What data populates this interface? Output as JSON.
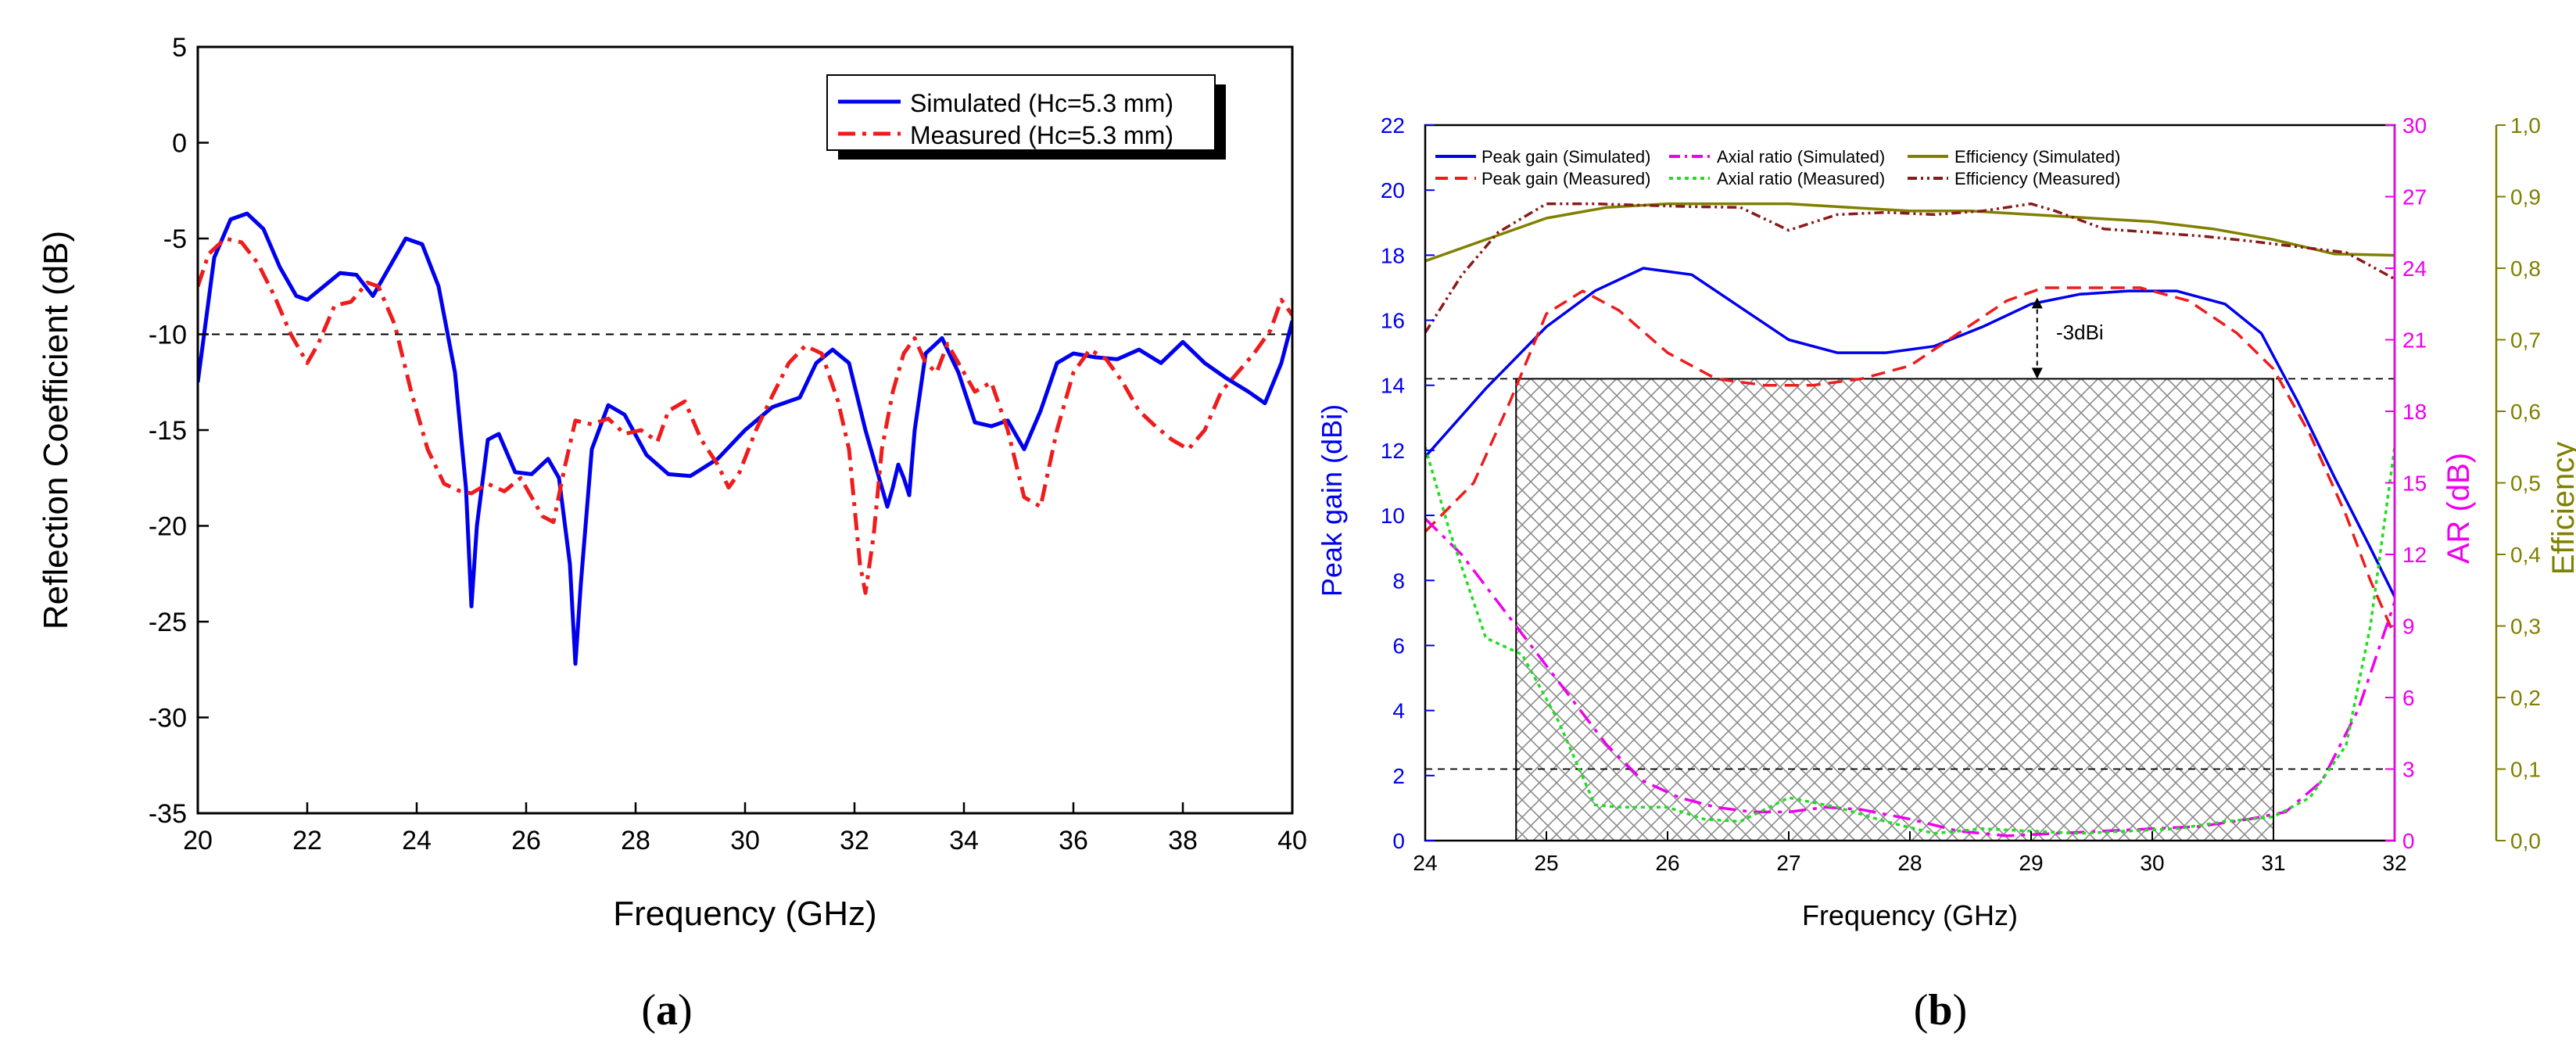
{
  "chart_data": [
    {
      "type": "line",
      "panel_label": "a",
      "title": "",
      "xlabel": "Frequency (GHz)",
      "ylabel": "Reflection Coefficient (dB)",
      "xlim": [
        20,
        40
      ],
      "ylim": [
        -35,
        5
      ],
      "xticks": [
        20,
        22,
        24,
        26,
        28,
        30,
        32,
        34,
        36,
        38,
        40
      ],
      "xtick_labels": [
        "20",
        "22",
        "24",
        "26",
        "28",
        "30",
        "32",
        "34",
        "36",
        "38",
        "40"
      ],
      "yticks": [
        -35,
        -30,
        -25,
        -20,
        -15,
        -10,
        -5,
        0,
        5
      ],
      "ytick_labels": [
        "-35",
        "-30",
        "-25",
        "-20",
        "-15",
        "-10",
        "-5",
        "0",
        "5"
      ],
      "reference_line": -10,
      "legend_position": "top-right",
      "series": [
        {
          "name": "Simulated (Hc=5.3 mm)",
          "color": "#0000ee",
          "style": "solid",
          "x": [
            20,
            20.3,
            20.6,
            20.9,
            21.2,
            21.5,
            21.8,
            22,
            22.3,
            22.6,
            22.9,
            23.2,
            23.5,
            23.8,
            24.1,
            24.4,
            24.7,
            24.9,
            25.0,
            25.1,
            25.3,
            25.5,
            25.8,
            26.1,
            26.4,
            26.6,
            26.8,
            26.9,
            27.0,
            27.2,
            27.5,
            27.8,
            28.2,
            28.6,
            29.0,
            29.5,
            30.0,
            30.5,
            31.0,
            31.3,
            31.6,
            31.9,
            32.2,
            32.4,
            32.6,
            32.7,
            32.8,
            32.9,
            33.0,
            33.1,
            33.3,
            33.6,
            33.9,
            34.2,
            34.5,
            34.8,
            35.1,
            35.4,
            35.7,
            36.0,
            36.4,
            36.8,
            37.2,
            37.6,
            38.0,
            38.4,
            38.8,
            39.2,
            39.5,
            39.8,
            40.0
          ],
          "y": [
            -12.5,
            -6.0,
            -4.0,
            -3.7,
            -4.5,
            -6.5,
            -8.0,
            -8.2,
            -7.5,
            -6.8,
            -6.9,
            -8.0,
            -6.5,
            -5.0,
            -5.3,
            -7.5,
            -12.0,
            -18.0,
            -24.2,
            -20.0,
            -15.5,
            -15.2,
            -17.2,
            -17.3,
            -16.5,
            -17.5,
            -22.0,
            -27.2,
            -23.0,
            -16.0,
            -13.7,
            -14.2,
            -16.3,
            -17.3,
            -17.4,
            -16.5,
            -15.0,
            -13.8,
            -13.3,
            -11.5,
            -10.8,
            -11.5,
            -15.0,
            -17.0,
            -19.0,
            -18.0,
            -16.8,
            -17.5,
            -18.4,
            -15.0,
            -11.0,
            -10.2,
            -12.0,
            -14.6,
            -14.8,
            -14.5,
            -16.0,
            -14.0,
            -11.5,
            -11.0,
            -11.2,
            -11.3,
            -10.8,
            -11.5,
            -10.4,
            -11.5,
            -12.3,
            -13.0,
            -13.6,
            -11.5,
            -9.3
          ]
        },
        {
          "name": "Measured (Hc=5.3 mm)",
          "color": "#ee1c1c",
          "style": "dashdot",
          "x": [
            20,
            20.2,
            20.5,
            20.8,
            21.1,
            21.4,
            21.7,
            22.0,
            22.2,
            22.5,
            22.8,
            23.1,
            23.3,
            23.6,
            23.9,
            24.2,
            24.5,
            24.8,
            25.0,
            25.3,
            25.6,
            25.9,
            26.1,
            26.3,
            26.5,
            26.7,
            26.9,
            27.2,
            27.5,
            27.8,
            28.1,
            28.4,
            28.6,
            28.9,
            29.2,
            29.5,
            29.7,
            29.9,
            30.2,
            30.5,
            30.8,
            31.1,
            31.4,
            31.7,
            31.9,
            32.0,
            32.1,
            32.2,
            32.35,
            32.5,
            32.7,
            32.9,
            33.1,
            33.3,
            33.5,
            33.7,
            33.9,
            34.2,
            34.5,
            34.8,
            35.1,
            35.4,
            35.7,
            36.0,
            36.3,
            36.6,
            36.9,
            37.2,
            37.5,
            37.8,
            38.1,
            38.4,
            38.7,
            39.0,
            39.3,
            39.6,
            39.8,
            40.0
          ],
          "y": [
            -7.5,
            -5.8,
            -5.0,
            -5.2,
            -6.3,
            -8.0,
            -10.0,
            -11.5,
            -10.5,
            -8.5,
            -8.3,
            -7.3,
            -7.5,
            -9.5,
            -13.0,
            -16.0,
            -17.8,
            -18.2,
            -18.3,
            -17.8,
            -18.2,
            -17.5,
            -18.5,
            -19.5,
            -19.8,
            -17.0,
            -14.5,
            -14.7,
            -14.4,
            -15.2,
            -15.0,
            -15.6,
            -14.0,
            -13.5,
            -15.5,
            -16.8,
            -18.0,
            -17.2,
            -15.0,
            -13.2,
            -11.5,
            -10.6,
            -11.0,
            -13.5,
            -16.0,
            -19.0,
            -22.0,
            -23.5,
            -20.5,
            -16.0,
            -13.0,
            -11.0,
            -10.2,
            -11.5,
            -12.0,
            -10.5,
            -11.5,
            -13.0,
            -12.5,
            -15.0,
            -18.5,
            -19.0,
            -15.0,
            -12.0,
            -10.8,
            -11.3,
            -12.5,
            -14.0,
            -14.8,
            -15.5,
            -16.0,
            -15.0,
            -13.0,
            -12.0,
            -11.0,
            -9.8,
            -8.2,
            -9.0
          ]
        }
      ]
    },
    {
      "type": "line",
      "panel_label": "b",
      "title": "",
      "xlabel": "Frequency (GHz)",
      "ylabel": "Peak gain (dBi)",
      "ylabel_right_1": "AR (dB)",
      "ylabel_right_2": "Efficiency",
      "xlim": [
        24,
        32
      ],
      "ylim": [
        0,
        22
      ],
      "ylim_right_1": [
        0,
        30
      ],
      "ylim_right_2": [
        0,
        1.0
      ],
      "xticks": [
        24,
        25,
        26,
        27,
        28,
        29,
        30,
        31,
        32
      ],
      "xtick_labels": [
        "24",
        "25",
        "26",
        "27",
        "28",
        "29",
        "30",
        "31",
        "32"
      ],
      "yticks": [
        0,
        2,
        4,
        6,
        8,
        10,
        12,
        14,
        16,
        18,
        20,
        22
      ],
      "ytick_labels": [
        "0",
        "2",
        "4",
        "6",
        "8",
        "10",
        "12",
        "14",
        "16",
        "18",
        "20",
        "22"
      ],
      "yticks_right_1": [
        0,
        3,
        6,
        9,
        12,
        15,
        18,
        21,
        24,
        27,
        30
      ],
      "ytick_labels_right_1": [
        "0",
        "3",
        "6",
        "9",
        "12",
        "15",
        "18",
        "21",
        "24",
        "27",
        "30"
      ],
      "yticks_right_2": [
        0,
        0.1,
        0.2,
        0.3,
        0.4,
        0.5,
        0.6,
        0.7,
        0.8,
        0.9,
        1.0
      ],
      "ytick_labels_right_2": [
        "0,0",
        "0,1",
        "0,2",
        "0,3",
        "0,4",
        "0,5",
        "0,6",
        "0,7",
        "0,8",
        "0,9",
        "1,0"
      ],
      "shaded_band": {
        "x_start": 24.75,
        "x_end": 31.0
      },
      "reference_lines_gain": [
        14.2,
        2.2
      ],
      "annotation": "-3dBi",
      "annotation_x": 29.05,
      "legend_position": "top",
      "colors": {
        "gain_axis": "#0000ee",
        "ar_axis": "#ee00ee",
        "eff_axis": "#808000"
      },
      "series": [
        {
          "name": "Peak gain (Simulated)",
          "axis": "gain",
          "color": "#0000ee",
          "style": "solid",
          "x": [
            24,
            24.5,
            25,
            25.4,
            25.8,
            26.2,
            26.6,
            27.0,
            27.4,
            27.8,
            28.2,
            28.6,
            29.0,
            29.4,
            29.8,
            30.2,
            30.6,
            30.9,
            31.2,
            31.5,
            31.8,
            32.0
          ],
          "y": [
            11.8,
            13.9,
            15.8,
            16.9,
            17.6,
            17.4,
            16.4,
            15.4,
            15.0,
            15.0,
            15.2,
            15.8,
            16.5,
            16.8,
            16.9,
            16.9,
            16.5,
            15.6,
            13.5,
            11.2,
            9.0,
            7.5
          ]
        },
        {
          "name": "Peak gain (Measured)",
          "axis": "gain",
          "color": "#ee1c1c",
          "style": "dashed",
          "x": [
            24,
            24.4,
            24.7,
            25.0,
            25.3,
            25.6,
            26.0,
            26.4,
            26.8,
            27.2,
            27.6,
            28.0,
            28.4,
            28.8,
            29.1,
            29.5,
            29.9,
            30.3,
            30.7,
            31.0,
            31.3,
            31.6,
            31.8,
            32.0
          ],
          "y": [
            9.5,
            11.0,
            13.5,
            16.2,
            16.9,
            16.3,
            15.0,
            14.2,
            14.0,
            14.0,
            14.2,
            14.6,
            15.6,
            16.6,
            17.0,
            17.0,
            17.0,
            16.6,
            15.6,
            14.5,
            12.5,
            10.0,
            8.0,
            6.3
          ]
        },
        {
          "name": "Axial ratio (Simulated)",
          "axis": "ar",
          "color": "#ee00ee",
          "style": "dashdot",
          "x": [
            24,
            24.3,
            24.6,
            24.9,
            25.2,
            25.5,
            25.8,
            26.1,
            26.4,
            26.7,
            27.0,
            27.3,
            27.6,
            28.0,
            28.4,
            28.8,
            29.2,
            29.6,
            30.0,
            30.4,
            30.8,
            31.1,
            31.4,
            31.7,
            32.0
          ],
          "y": [
            13.5,
            12.0,
            10.0,
            8.0,
            6.0,
            4.0,
            2.5,
            1.8,
            1.4,
            1.2,
            1.2,
            1.4,
            1.3,
            0.9,
            0.4,
            0.2,
            0.3,
            0.4,
            0.5,
            0.6,
            0.9,
            1.2,
            2.5,
            5.5,
            10.0
          ]
        },
        {
          "name": "Axial ratio (Measured)",
          "axis": "ar",
          "color": "#22dd22",
          "style": "dotted",
          "x": [
            24,
            24.2,
            24.5,
            24.8,
            25.1,
            25.4,
            25.6,
            26.0,
            26.3,
            26.6,
            27.0,
            27.4,
            27.8,
            28.2,
            28.6,
            29.0,
            29.4,
            29.8,
            30.2,
            30.6,
            31.0,
            31.3,
            31.6,
            31.8,
            32.0
          ],
          "y": [
            16.5,
            13.0,
            8.5,
            7.8,
            5.0,
            1.5,
            1.4,
            1.4,
            0.9,
            0.8,
            1.8,
            1.4,
            0.8,
            0.3,
            0.5,
            0.4,
            0.3,
            0.4,
            0.5,
            0.8,
            1.0,
            1.8,
            4.0,
            9.0,
            16.5
          ]
        },
        {
          "name": "Efficiency (Simulated)",
          "axis": "eff",
          "color": "#808000",
          "style": "solid",
          "x": [
            24,
            24.5,
            25,
            25.5,
            26,
            26.5,
            27,
            27.5,
            28,
            28.5,
            29,
            29.5,
            30,
            30.5,
            31,
            31.5,
            32
          ],
          "y": [
            0.81,
            0.84,
            0.87,
            0.885,
            0.89,
            0.89,
            0.89,
            0.885,
            0.88,
            0.88,
            0.875,
            0.87,
            0.865,
            0.855,
            0.84,
            0.82,
            0.818
          ]
        },
        {
          "name": "Efficiency (Measured)",
          "axis": "eff",
          "color": "#8b1a1a",
          "style": "dashdotdot",
          "x": [
            24,
            24.3,
            24.6,
            25.0,
            25.4,
            25.8,
            26.2,
            26.6,
            27.0,
            27.4,
            27.8,
            28.2,
            28.6,
            29.0,
            29.2,
            29.6,
            30.0,
            30.4,
            30.8,
            31.2,
            31.6,
            32.0
          ],
          "y": [
            0.71,
            0.79,
            0.85,
            0.89,
            0.89,
            0.888,
            0.886,
            0.885,
            0.853,
            0.875,
            0.878,
            0.875,
            0.88,
            0.89,
            0.88,
            0.855,
            0.85,
            0.845,
            0.838,
            0.83,
            0.822,
            0.785
          ]
        }
      ]
    }
  ]
}
